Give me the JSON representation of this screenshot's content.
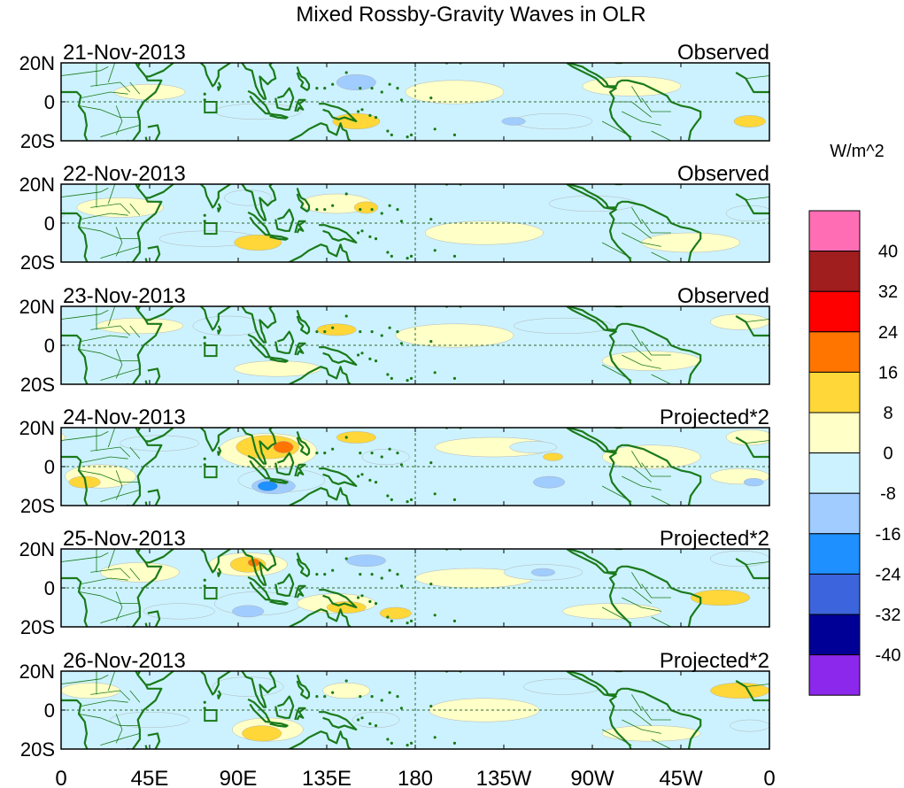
{
  "title": "Mixed Rossby-Gravity Waves in OLR",
  "colors": {
    "land": "#1a7a1a",
    "frame": "#000000",
    "zero_line": "#2e6b2e"
  },
  "chart_data": {
    "type": "heatmap",
    "title": "Mixed Rossby-Gravity Waves in OLR",
    "units": "W/m^2",
    "x_ticks": [
      "0",
      "45E",
      "90E",
      "135E",
      "180",
      "135W",
      "90W",
      "45W",
      "0"
    ],
    "x_range_deg": [
      0,
      360
    ],
    "y_ticks": [
      "20N",
      "0",
      "20S"
    ],
    "y_range_deg": [
      -20,
      20
    ],
    "colorbar": {
      "labels": [
        "40",
        "32",
        "24",
        "16",
        "8",
        "0",
        "-8",
        "-16",
        "-24",
        "-32",
        "-40"
      ],
      "colors": [
        "#ff6eb4",
        "#a01e1e",
        "#ff0000",
        "#ff7500",
        "#ffd738",
        "#ffffc8",
        "#ccf2ff",
        "#a0ccff",
        "#1e90ff",
        "#3c64dc",
        "#000096",
        "#8c28eb"
      ]
    },
    "panels": [
      {
        "date": "21-Nov-2013",
        "label": "Observed",
        "blobs": [
          {
            "lon": 45,
            "lat": 5,
            "rx": 18,
            "ry": 4,
            "v": 4
          },
          {
            "lon": 100,
            "lat": -5,
            "rx": 22,
            "ry": 4,
            "v": -4
          },
          {
            "lon": 150,
            "lat": 10,
            "rx": 10,
            "ry": 4,
            "v": -10
          },
          {
            "lon": 150,
            "lat": -10,
            "rx": 12,
            "ry": 4,
            "v": 10
          },
          {
            "lon": 200,
            "lat": 5,
            "rx": 25,
            "ry": 6,
            "v": 4
          },
          {
            "lon": 250,
            "lat": -10,
            "rx": 20,
            "ry": 4,
            "v": -4
          },
          {
            "lon": 290,
            "lat": 8,
            "rx": 25,
            "ry": 5,
            "v": 4
          },
          {
            "lon": 350,
            "lat": -10,
            "rx": 8,
            "ry": 3,
            "v": 10
          },
          {
            "lon": 230,
            "lat": -10,
            "rx": 6,
            "ry": 2,
            "v": -10
          }
        ]
      },
      {
        "date": "22-Nov-2013",
        "label": "Observed",
        "blobs": [
          {
            "lon": 30,
            "lat": 8,
            "rx": 22,
            "ry": 5,
            "v": 4
          },
          {
            "lon": 75,
            "lat": -8,
            "rx": 25,
            "ry": 4,
            "v": -4
          },
          {
            "lon": 95,
            "lat": 13,
            "rx": 12,
            "ry": 4,
            "v": -4
          },
          {
            "lon": 100,
            "lat": -10,
            "rx": 12,
            "ry": 4,
            "v": 10
          },
          {
            "lon": 140,
            "lat": 10,
            "rx": 18,
            "ry": 5,
            "v": 4
          },
          {
            "lon": 155,
            "lat": 8,
            "rx": 6,
            "ry": 3,
            "v": 10
          },
          {
            "lon": 215,
            "lat": -5,
            "rx": 30,
            "ry": 6,
            "v": 4
          },
          {
            "lon": 270,
            "lat": 10,
            "rx": 22,
            "ry": 4,
            "v": -4
          },
          {
            "lon": 320,
            "lat": -10,
            "rx": 25,
            "ry": 5,
            "v": 4
          },
          {
            "lon": 350,
            "lat": 5,
            "rx": 12,
            "ry": 4,
            "v": -4
          }
        ]
      },
      {
        "date": "23-Nov-2013",
        "label": "Observed",
        "blobs": [
          {
            "lon": 40,
            "lat": 10,
            "rx": 22,
            "ry": 4,
            "v": 4
          },
          {
            "lon": 85,
            "lat": 10,
            "rx": 18,
            "ry": 5,
            "v": -4
          },
          {
            "lon": 110,
            "lat": -12,
            "rx": 22,
            "ry": 4,
            "v": 4
          },
          {
            "lon": 140,
            "lat": 8,
            "rx": 10,
            "ry": 3,
            "v": 10
          },
          {
            "lon": 200,
            "lat": 5,
            "rx": 30,
            "ry": 6,
            "v": 4
          },
          {
            "lon": 255,
            "lat": 10,
            "rx": 25,
            "ry": 4,
            "v": -4
          },
          {
            "lon": 300,
            "lat": -8,
            "rx": 25,
            "ry": 5,
            "v": 4
          },
          {
            "lon": 345,
            "lat": 12,
            "rx": 15,
            "ry": 4,
            "v": 4
          }
        ]
      },
      {
        "date": "24-Nov-2013",
        "label": "Projected*2",
        "blobs": [
          {
            "lon": 20,
            "lat": -5,
            "rx": 18,
            "ry": 6,
            "v": 4
          },
          {
            "lon": 12,
            "lat": -8,
            "rx": 8,
            "ry": 3,
            "v": 10
          },
          {
            "lon": 50,
            "lat": 12,
            "rx": 20,
            "ry": 4,
            "v": -4
          },
          {
            "lon": 105,
            "lat": 8,
            "rx": 25,
            "ry": 9,
            "v": 4
          },
          {
            "lon": 105,
            "lat": 10,
            "rx": 16,
            "ry": 6,
            "v": 10
          },
          {
            "lon": 113,
            "lat": 10,
            "rx": 5,
            "ry": 3,
            "v": 18
          },
          {
            "lon": 112,
            "lat": -7,
            "rx": 22,
            "ry": 6,
            "v": -4
          },
          {
            "lon": 108,
            "lat": -10,
            "rx": 11,
            "ry": 4,
            "v": -10
          },
          {
            "lon": 105,
            "lat": -10,
            "rx": 5,
            "ry": 2.5,
            "v": -18
          },
          {
            "lon": 150,
            "lat": 15,
            "rx": 10,
            "ry": 3,
            "v": 10
          },
          {
            "lon": 165,
            "lat": 5,
            "rx": 12,
            "ry": 4,
            "v": -4
          },
          {
            "lon": 220,
            "lat": 10,
            "rx": 30,
            "ry": 5,
            "v": 4
          },
          {
            "lon": 240,
            "lat": 10,
            "rx": 12,
            "ry": 3,
            "v": -4
          },
          {
            "lon": 248,
            "lat": -8,
            "rx": 8,
            "ry": 3,
            "v": -10
          },
          {
            "lon": 250,
            "lat": 5,
            "rx": 5,
            "ry": 2,
            "v": 10
          },
          {
            "lon": 300,
            "lat": 5,
            "rx": 25,
            "ry": 6,
            "v": 4
          },
          {
            "lon": 345,
            "lat": -5,
            "rx": 15,
            "ry": 4,
            "v": 4
          },
          {
            "lon": 350,
            "lat": 15,
            "rx": 12,
            "ry": 4,
            "v": 4
          },
          {
            "lon": 352,
            "lat": -8,
            "rx": 5,
            "ry": 2,
            "v": -10
          }
        ]
      },
      {
        "date": "25-Nov-2013",
        "label": "Projected*2",
        "blobs": [
          {
            "lon": 40,
            "lat": 8,
            "rx": 20,
            "ry": 5,
            "v": 4
          },
          {
            "lon": 60,
            "lat": -12,
            "rx": 18,
            "ry": 4,
            "v": -4
          },
          {
            "lon": 95,
            "lat": 12,
            "rx": 20,
            "ry": 6,
            "v": 4
          },
          {
            "lon": 95,
            "lat": 12,
            "rx": 9,
            "ry": 4,
            "v": 10
          },
          {
            "lon": 98,
            "lat": 13,
            "rx": 3,
            "ry": 2,
            "v": 18
          },
          {
            "lon": 100,
            "lat": -8,
            "rx": 22,
            "ry": 6,
            "v": -4
          },
          {
            "lon": 95,
            "lat": -12,
            "rx": 8,
            "ry": 3,
            "v": -10
          },
          {
            "lon": 140,
            "lat": -8,
            "rx": 20,
            "ry": 5,
            "v": 4
          },
          {
            "lon": 145,
            "lat": -10,
            "rx": 10,
            "ry": 3,
            "v": 10
          },
          {
            "lon": 155,
            "lat": 14,
            "rx": 10,
            "ry": 3,
            "v": -10
          },
          {
            "lon": 170,
            "lat": -13,
            "rx": 8,
            "ry": 3,
            "v": 10
          },
          {
            "lon": 210,
            "lat": 5,
            "rx": 30,
            "ry": 5,
            "v": 4
          },
          {
            "lon": 245,
            "lat": 8,
            "rx": 20,
            "ry": 4,
            "v": -4
          },
          {
            "lon": 245,
            "lat": 8,
            "rx": 6,
            "ry": 2,
            "v": -10
          },
          {
            "lon": 280,
            "lat": -12,
            "rx": 25,
            "ry": 4,
            "v": 4
          },
          {
            "lon": 335,
            "lat": -5,
            "rx": 15,
            "ry": 4,
            "v": 10
          },
          {
            "lon": 345,
            "lat": 15,
            "rx": 15,
            "ry": 4,
            "v": -4
          }
        ]
      },
      {
        "date": "26-Nov-2013",
        "label": "Projected*2",
        "blobs": [
          {
            "lon": 15,
            "lat": 10,
            "rx": 15,
            "ry": 4,
            "v": 4
          },
          {
            "lon": 45,
            "lat": -5,
            "rx": 20,
            "ry": 4,
            "v": -4
          },
          {
            "lon": 95,
            "lat": 12,
            "rx": 18,
            "ry": 5,
            "v": -4
          },
          {
            "lon": 105,
            "lat": -10,
            "rx": 18,
            "ry": 6,
            "v": 4
          },
          {
            "lon": 102,
            "lat": -12,
            "rx": 10,
            "ry": 4,
            "v": 10
          },
          {
            "lon": 145,
            "lat": 10,
            "rx": 12,
            "ry": 4,
            "v": 4
          },
          {
            "lon": 160,
            "lat": -5,
            "rx": 12,
            "ry": 4,
            "v": -4
          },
          {
            "lon": 215,
            "lat": 0,
            "rx": 28,
            "ry": 6,
            "v": 4
          },
          {
            "lon": 255,
            "lat": 12,
            "rx": 20,
            "ry": 4,
            "v": -4
          },
          {
            "lon": 300,
            "lat": -12,
            "rx": 25,
            "ry": 4,
            "v": 4
          },
          {
            "lon": 345,
            "lat": 10,
            "rx": 15,
            "ry": 4,
            "v": 10
          },
          {
            "lon": 350,
            "lat": -8,
            "rx": 10,
            "ry": 3,
            "v": -4
          }
        ]
      }
    ]
  }
}
